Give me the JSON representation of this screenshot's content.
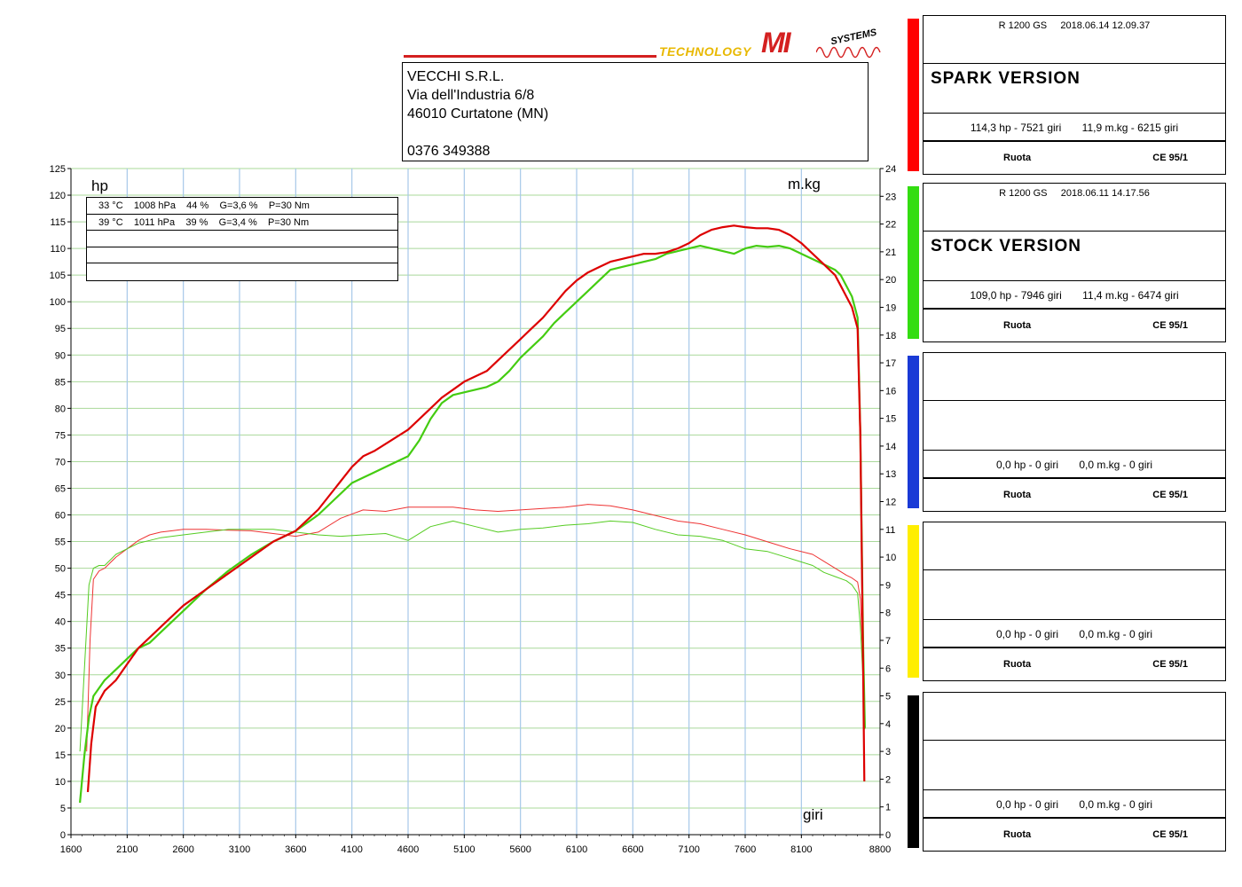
{
  "logo": {
    "left_text": "TECHNOLOGY",
    "mi": "MI",
    "systems": "SYSTEMS"
  },
  "address": [
    "VECCHI S.R.L.",
    "Via dell'Industria 6/8",
    "46010 Curtatone (MN)",
    "",
    "0376 349388"
  ],
  "conditions": [
    "33 °C    1008 hPa    44 %    G=3,6 %    P=30 Nm",
    "39 °C    1011 hPa    39 %    G=3,4 %    P=30 Nm",
    "",
    "",
    ""
  ],
  "panels": [
    {
      "color": "#ff0000",
      "header": "R 1200 GS     2018.06.14 12.09.37",
      "title": "SPARK VERSION",
      "values": "114,3 hp - 7521 giri       11,9 m.kg - 6215 giri",
      "foot_left": "Ruota",
      "foot_right": "CE 95/1"
    },
    {
      "color": "#33dd11",
      "header": "R 1200 GS     2018.06.11 14.17.56",
      "title": "STOCK VERSION",
      "values": "109,0 hp - 7946 giri       11,4 m.kg - 6474 giri",
      "foot_left": "Ruota",
      "foot_right": "CE 95/1"
    },
    {
      "color": "#1a3ad6",
      "header": "",
      "title": "",
      "values": "0,0 hp - 0 giri       0,0 m.kg - 0 giri",
      "foot_left": "Ruota",
      "foot_right": "CE 95/1"
    },
    {
      "color": "#ffee00",
      "header": "",
      "title": "",
      "values": "0,0 hp - 0 giri       0,0 m.kg - 0 giri",
      "foot_left": "Ruota",
      "foot_right": "CE 95/1"
    },
    {
      "color": "#000000",
      "header": "",
      "title": "",
      "values": "0,0 hp - 0 giri       0,0 m.kg - 0 giri",
      "foot_left": "Ruota",
      "foot_right": "CE 95/1"
    }
  ],
  "chart_data": {
    "type": "line",
    "ylabel_left": "hp",
    "ylabel_right": "m.kg",
    "xlabel": "giri",
    "xlim": [
      1600,
      8800
    ],
    "ylim_left": [
      0,
      125
    ],
    "ylim_right": [
      0,
      24
    ],
    "xticks": [
      1600,
      2100,
      2600,
      3100,
      3600,
      4100,
      4600,
      5100,
      5600,
      6100,
      6600,
      7100,
      7600,
      8100,
      8800
    ],
    "yticks_left": [
      0,
      5,
      10,
      15,
      20,
      25,
      30,
      35,
      40,
      45,
      50,
      55,
      60,
      65,
      70,
      75,
      80,
      85,
      90,
      95,
      100,
      105,
      110,
      115,
      120,
      125
    ],
    "yticks_right": [
      0,
      1,
      2,
      3,
      4,
      5,
      6,
      7,
      8,
      9,
      10,
      11,
      12,
      13,
      14,
      15,
      16,
      17,
      18,
      19,
      20,
      21,
      22,
      23,
      24
    ],
    "grid": true,
    "colors": {
      "grid_major": "#a7c8e8",
      "grid_minor": "#a9d89a"
    },
    "series": [
      {
        "name": "SPARK VERSION",
        "axis": "left",
        "color": "#dd0000",
        "width": 2.2,
        "x": [
          1750,
          1780,
          1820,
          1900,
          2000,
          2100,
          2200,
          2300,
          2400,
          2600,
          2800,
          3000,
          3200,
          3400,
          3600,
          3800,
          3950,
          4100,
          4200,
          4300,
          4450,
          4600,
          4700,
          4800,
          4900,
          5000,
          5100,
          5200,
          5300,
          5400,
          5500,
          5600,
          5700,
          5800,
          5900,
          6000,
          6100,
          6200,
          6300,
          6400,
          6500,
          6600,
          6700,
          6800,
          6900,
          7000,
          7100,
          7200,
          7300,
          7400,
          7500,
          7600,
          7700,
          7800,
          7900,
          8000,
          8100,
          8200,
          8300,
          8400,
          8450,
          8500,
          8550,
          8600,
          8625,
          8650,
          8660
        ],
        "y": [
          8,
          17,
          24,
          27,
          29,
          32,
          35,
          37,
          39,
          43,
          46,
          49,
          52,
          55,
          57,
          61,
          65,
          69,
          71,
          72,
          74,
          76,
          78,
          80,
          82,
          83.5,
          85,
          86,
          87,
          89,
          91,
          93,
          95,
          97,
          99.5,
          102,
          104,
          105.5,
          106.5,
          107.5,
          108,
          108.5,
          109,
          109,
          109.3,
          110,
          111,
          112.5,
          113.5,
          114,
          114.3,
          114,
          113.8,
          113.8,
          113.5,
          112.5,
          111,
          109,
          107,
          105,
          103,
          101,
          99,
          95,
          75,
          30,
          10
        ]
      },
      {
        "name": "STOCK VERSION",
        "axis": "left",
        "color": "#44cc11",
        "width": 2.2,
        "x": [
          1680,
          1720,
          1760,
          1800,
          1900,
          2000,
          2100,
          2200,
          2300,
          2400,
          2600,
          2800,
          3000,
          3200,
          3400,
          3600,
          3800,
          3950,
          4100,
          4200,
          4300,
          4450,
          4600,
          4700,
          4800,
          4900,
          5000,
          5100,
          5200,
          5300,
          5400,
          5500,
          5600,
          5700,
          5800,
          5900,
          6000,
          6100,
          6200,
          6300,
          6400,
          6500,
          6600,
          6700,
          6800,
          6900,
          7000,
          7100,
          7200,
          7300,
          7400,
          7500,
          7600,
          7700,
          7800,
          7900,
          8000,
          8100,
          8200,
          8300,
          8400,
          8450,
          8500,
          8550,
          8600,
          8625,
          8650,
          8665
        ],
        "y": [
          6,
          15,
          22,
          26,
          29,
          31,
          33,
          35,
          36,
          38,
          42,
          46,
          49.5,
          52.5,
          55,
          57,
          60,
          63,
          66,
          67,
          68,
          69.5,
          71,
          74,
          78,
          81,
          82.5,
          83,
          83.5,
          84,
          85,
          87,
          89.5,
          91.5,
          93.5,
          96,
          98,
          100,
          102,
          104,
          106,
          106.5,
          107,
          107.5,
          108,
          109,
          109.5,
          110,
          110.5,
          110,
          109.5,
          109,
          110,
          110.5,
          110.3,
          110.5,
          110,
          109,
          108,
          107,
          106,
          105,
          103,
          101,
          97,
          75,
          35,
          20
        ]
      },
      {
        "name": "SPARK VERSION",
        "axis": "right",
        "color": "#ee3333",
        "width": 1,
        "x": [
          1740,
          1770,
          1800,
          1850,
          1900,
          2000,
          2100,
          2200,
          2300,
          2400,
          2500,
          2600,
          2800,
          3000,
          3200,
          3400,
          3600,
          3800,
          4000,
          4200,
          4400,
          4600,
          4800,
          5000,
          5200,
          5400,
          5600,
          5800,
          6000,
          6200,
          6400,
          6600,
          6800,
          7000,
          7200,
          7400,
          7600,
          7800,
          8000,
          8200,
          8300,
          8400,
          8500,
          8550,
          8600,
          8625,
          8650,
          8665
        ],
        "y": [
          3,
          7,
          9.2,
          9.5,
          9.6,
          10,
          10.3,
          10.6,
          10.8,
          10.9,
          10.95,
          11,
          11,
          10.97,
          10.95,
          10.85,
          10.75,
          10.9,
          11.4,
          11.7,
          11.65,
          11.8,
          11.8,
          11.8,
          11.7,
          11.65,
          11.7,
          11.75,
          11.8,
          11.9,
          11.85,
          11.7,
          11.5,
          11.3,
          11.2,
          11,
          10.8,
          10.55,
          10.3,
          10.1,
          9.85,
          9.6,
          9.35,
          9.25,
          9.1,
          8.5,
          6,
          4
        ]
      },
      {
        "name": "STOCK VERSION",
        "axis": "right",
        "color": "#55cc22",
        "width": 1,
        "x": [
          1680,
          1720,
          1760,
          1800,
          1850,
          1900,
          2000,
          2100,
          2200,
          2300,
          2400,
          2600,
          2800,
          3000,
          3200,
          3400,
          3600,
          3800,
          4000,
          4200,
          4400,
          4600,
          4800,
          5000,
          5200,
          5400,
          5600,
          5800,
          6000,
          6200,
          6400,
          6600,
          6800,
          7000,
          7200,
          7400,
          7600,
          7800,
          8000,
          8200,
          8300,
          8400,
          8500,
          8550,
          8600,
          8625,
          8650,
          8665
        ],
        "y": [
          3,
          6,
          9,
          9.6,
          9.7,
          9.7,
          10.1,
          10.3,
          10.5,
          10.6,
          10.7,
          10.8,
          10.9,
          11,
          11,
          11,
          10.9,
          10.8,
          10.75,
          10.8,
          10.85,
          10.6,
          11.1,
          11.3,
          11.1,
          10.9,
          11.0,
          11.05,
          11.15,
          11.2,
          11.3,
          11.25,
          11.0,
          10.8,
          10.75,
          10.6,
          10.3,
          10.2,
          9.95,
          9.7,
          9.45,
          9.3,
          9.15,
          9.0,
          8.7,
          7.5,
          5.5,
          3.8
        ]
      }
    ]
  }
}
